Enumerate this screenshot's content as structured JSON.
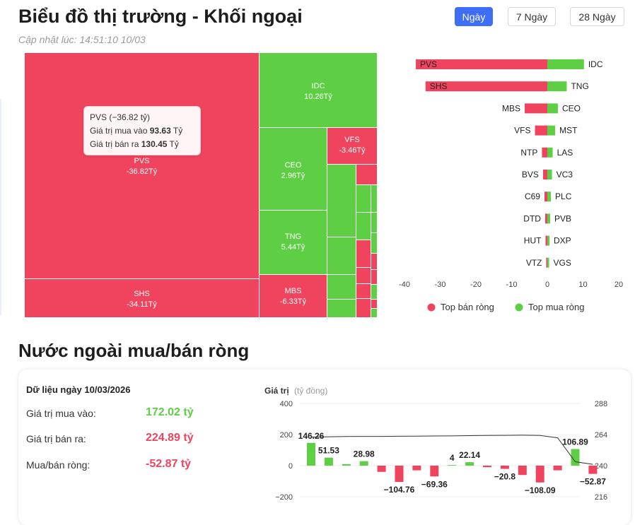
{
  "header": {
    "title": "Biểu đồ thị trường - Khối ngoại",
    "updated": "Cập nhật lúc: 14:51:10 10/03",
    "tabs": [
      {
        "label": "Ngày",
        "active": true
      },
      {
        "label": "7 Ngày",
        "active": false
      },
      {
        "label": "28 Ngày",
        "active": false
      }
    ]
  },
  "treemap": {
    "tiles": [
      {
        "ticker": "PVS",
        "value": "-36.82Tỷ",
        "side": "sell"
      },
      {
        "ticker": "SHS",
        "value": "-34.11Tỷ",
        "side": "sell"
      },
      {
        "ticker": "IDC",
        "value": "10.26Tỷ",
        "side": "buy"
      },
      {
        "ticker": "CEO",
        "value": "2.96Tỷ",
        "side": "buy"
      },
      {
        "ticker": "TNG",
        "value": "5.44Tỷ",
        "side": "buy"
      },
      {
        "ticker": "MBS",
        "value": "-6.33Tỷ",
        "side": "sell"
      },
      {
        "ticker": "VFS",
        "value": "-3.46Tỷ",
        "side": "sell"
      }
    ],
    "tooltip": {
      "head": "PVS (−36.82 tỷ)",
      "buy_label": "Giá trị mua vào",
      "buy_value": "93.63",
      "buy_unit": "Tỷ",
      "sell_label": "Giá trị bán ra",
      "sell_value": "130.45",
      "sell_unit": "Tỷ"
    }
  },
  "colors": {
    "sell": "#f0435d",
    "buy": "#5ecf45",
    "line": "#333333",
    "accent": "#3d6ef5"
  },
  "chart_data": [
    {
      "type": "bar",
      "orientation": "horizontal",
      "sellers": [
        "PVS",
        "SHS",
        "MBS",
        "VFS",
        "NTP",
        "BVS",
        "C69",
        "DTD",
        "HUT",
        "VTZ"
      ],
      "sell_values": [
        -36.82,
        -34.11,
        -6.33,
        -3.46,
        -1.5,
        -1.2,
        -0.8,
        -0.6,
        -0.5,
        -0.3
      ],
      "buyers": [
        "IDC",
        "TNG",
        "CEO",
        "MST",
        "LAS",
        "VC3",
        "PLC",
        "PVB",
        "DXP",
        "VGS"
      ],
      "buy_values": [
        10.26,
        5.44,
        2.96,
        2.2,
        1.5,
        1.3,
        1.0,
        0.8,
        0.6,
        0.5
      ],
      "xticks": [
        "-40",
        "-30",
        "-20",
        "-10",
        "0",
        "10",
        "20"
      ],
      "xlim": [
        -40,
        20
      ],
      "legend": [
        {
          "name": "Top bán ròng",
          "color": "#f0435d"
        },
        {
          "name": "Top mua ròng",
          "color": "#5ecf45"
        }
      ],
      "legend_position": "bottom"
    },
    {
      "type": "bar",
      "values": [
        146.26,
        51.53,
        10,
        28.98,
        -40,
        -104.76,
        -30,
        -69.36,
        4,
        22.14,
        -10,
        -20.8,
        -60,
        -108.09,
        -30,
        106.89,
        -52.87
      ],
      "data_labels": {
        "0": "146.26",
        "1": "51.53",
        "3": "28.98",
        "5": "−104.76",
        "7": "−69.36",
        "8": "4",
        "9": "22.14",
        "11": "−20.8",
        "13": "−108.09",
        "15": "106.89",
        "16": "−52.87"
      },
      "line": [
        262,
        262.3,
        262.5,
        262.6,
        262.6,
        262.7,
        262.8,
        262.9,
        263,
        263.2,
        263.3,
        263.4,
        263.5,
        263.3,
        261.5,
        243,
        241
      ],
      "ylabel": "Giá trị",
      "yunit": "(tỷ đồng)",
      "ylim": [
        -200,
        400
      ],
      "yticks": [
        "400",
        "200",
        "0",
        "−200"
      ],
      "y2lim": [
        216,
        288
      ],
      "y2ticks": [
        "288",
        "264",
        "240",
        "216"
      ]
    }
  ],
  "summary": {
    "title": "Dữ liệu ngày 10/03/2026",
    "rows": [
      {
        "label": "Giá trị mua vào:",
        "value": "172.02 tỷ",
        "color": "#5ecf45"
      },
      {
        "label": "Giá trị bán ra:",
        "value": "224.89 tỷ",
        "color": "#f0435d"
      },
      {
        "label": "Mua/bán ròng:",
        "value": "-52.87 tỷ",
        "color": "#f0435d"
      }
    ]
  },
  "section2": {
    "title": "Nước ngoài mua/bán ròng"
  }
}
